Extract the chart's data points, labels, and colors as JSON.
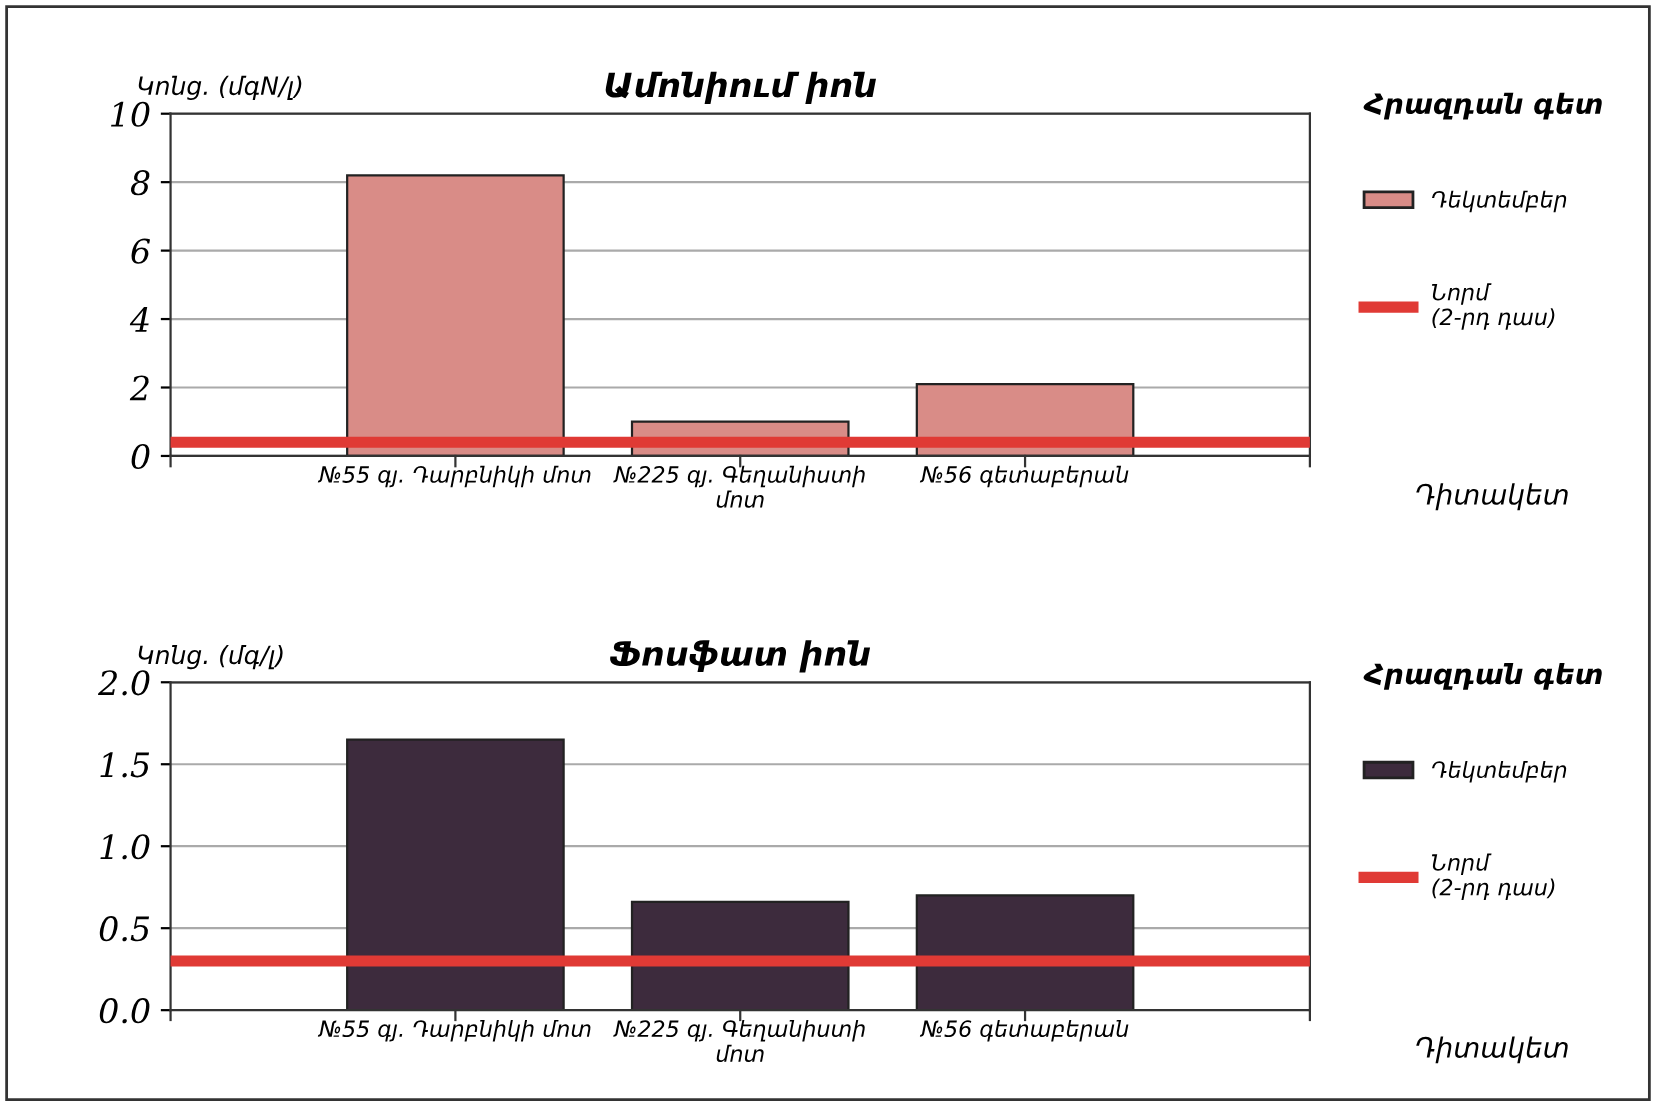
{
  "chart_data": [
    {
      "type": "bar",
      "title": "Ամոնիում իոն",
      "ylabel": "Կոնց. (մգN/լ)",
      "xlabel": "Դիտակետ",
      "legend_title": "Հրազդան գետ",
      "categories": [
        "№55 գյ. Դարբնիկի մոտ",
        "№225 գյ. Գեղանիստի\nմոտ",
        "№56 գետաբերան"
      ],
      "series": [
        {
          "name": "Դեկտեմբեր",
          "color": "#d98c87",
          "values": [
            8.2,
            1.0,
            2.1
          ]
        }
      ],
      "ref_lines": [
        {
          "axis": "y",
          "value": 0.4,
          "label": "Նորմ\n(2-րդ դաս)",
          "color": "#e03a35"
        }
      ],
      "ylim": [
        0,
        10
      ],
      "yticks": [
        0,
        2,
        4,
        6,
        8,
        10
      ],
      "grid": "y",
      "legend": "right"
    },
    {
      "type": "bar",
      "title": "Ֆոսֆատ իոն",
      "ylabel": "Կոնց. (մգ/լ)",
      "xlabel": "Դիտակետ",
      "legend_title": "Հրազդան գետ",
      "categories": [
        "№55 գյ. Դարբնիկի մոտ",
        "№225 գյ. Գեղանիստի\nմոտ",
        "№56 գետաբերան"
      ],
      "series": [
        {
          "name": "Դեկտեմբեր",
          "color": "#3d2b3d",
          "values": [
            1.65,
            0.66,
            0.7
          ]
        }
      ],
      "ref_lines": [
        {
          "axis": "y",
          "value": 0.3,
          "label": "Նորմ\n(2-րդ դաս)",
          "color": "#e03a35"
        }
      ],
      "ylim": [
        0,
        2.0
      ],
      "yticks": [
        {
          "value": 0,
          "label": "0.0"
        },
        {
          "value": 0.5,
          "label": "0.5"
        },
        {
          "value": 1.0,
          "label": "1.0"
        },
        {
          "value": 1.5,
          "label": "1.5"
        },
        {
          "value": 2.0,
          "label": "2.0"
        }
      ],
      "grid": "y",
      "legend": "right"
    }
  ]
}
